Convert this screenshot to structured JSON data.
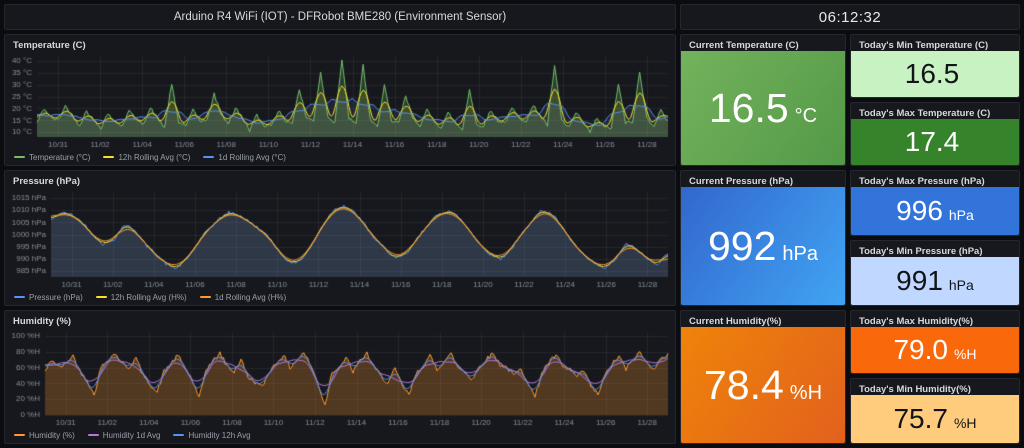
{
  "header": {
    "dashboard_title": "Arduino R4 WiFi (IOT) - DFRobot BME280 (Environment Sensor)"
  },
  "clock": {
    "time": "06:12:32"
  },
  "chart_data": [
    {
      "id": "temperature",
      "type": "area",
      "title": "Temperature (C)",
      "span_days": 30,
      "points_per_day": 3,
      "upsample": 4,
      "noise": 0.8,
      "ylim": [
        8,
        42
      ],
      "y_tick_values": [
        10,
        15,
        20,
        25,
        30,
        35,
        40
      ],
      "y_tick_labels": [
        "10 °C",
        "15 °C",
        "20 °C",
        "25 °C",
        "30 °C",
        "35 °C",
        "40 °C"
      ],
      "x_tick_days": [
        1,
        3,
        5,
        7,
        9,
        11,
        13,
        15,
        17,
        19,
        21,
        23,
        25,
        27,
        29
      ],
      "x_tick_labels": [
        "10/31",
        "11/02",
        "11/04",
        "11/06",
        "11/08",
        "11/10",
        "11/12",
        "11/14",
        "11/16",
        "11/18",
        "11/20",
        "11/22",
        "11/24",
        "11/26",
        "11/28"
      ],
      "values": [
        14,
        20,
        16,
        15,
        21,
        17,
        13,
        19,
        15,
        12,
        18,
        14,
        13,
        19,
        15,
        14,
        20,
        16,
        12,
        30,
        14,
        13,
        19,
        15,
        15,
        26,
        17,
        14,
        20,
        16,
        11,
        17,
        13,
        13,
        19,
        15,
        14,
        28,
        16,
        15,
        35,
        17,
        14,
        40,
        16,
        13,
        38,
        15,
        12,
        30,
        14,
        14,
        25,
        16,
        13,
        19,
        15,
        12,
        18,
        14,
        11,
        28,
        13,
        13,
        19,
        15,
        14,
        20,
        16,
        15,
        21,
        17,
        13,
        38,
        15,
        12,
        18,
        14,
        10,
        16,
        12,
        12,
        30,
        14,
        14,
        35,
        16,
        13,
        19,
        15
      ],
      "series": [
        {
          "name": "Temperature (°C)",
          "color": "#73BF69",
          "fill": "rgba(115,191,105,0.22)",
          "type": "raw",
          "width": 1
        },
        {
          "name": "12h Rolling Avg (°C)",
          "color": "#FADE2A",
          "fill": "rgba(250,222,42,0.10)",
          "type": "avg",
          "window_days": 0.5,
          "width": 1
        },
        {
          "name": "1d Rolling Avg (°C)",
          "color": "#5794F2",
          "fill": "rgba(87,148,242,0.10)",
          "type": "avg",
          "window_days": 1,
          "width": 1
        }
      ]
    },
    {
      "id": "pressure",
      "type": "area",
      "title": "Pressure (hPa)",
      "span_days": 30,
      "points_per_day": 2,
      "upsample": 6,
      "noise": 0.7,
      "ylim": [
        982.5,
        1017.5
      ],
      "y_tick_values": [
        985,
        990,
        995,
        1000,
        1005,
        1010,
        1015
      ],
      "y_tick_labels": [
        "985 hPa",
        "990 hPa",
        "995 hPa",
        "1000 hPa",
        "1005 hPa",
        "1010 hPa",
        "1015 hPa"
      ],
      "x_tick_days": [
        1,
        3,
        5,
        7,
        9,
        11,
        13,
        15,
        17,
        19,
        21,
        23,
        25,
        27,
        29
      ],
      "x_tick_labels": [
        "10/31",
        "11/02",
        "11/04",
        "11/06",
        "11/08",
        "11/10",
        "11/12",
        "11/14",
        "11/16",
        "11/18",
        "11/20",
        "11/22",
        "11/24",
        "11/26",
        "11/28"
      ],
      "values": [
        1006,
        1009,
        1008,
        1005,
        1000,
        996,
        998,
        1004,
        1002,
        996,
        992,
        988,
        986,
        990,
        996,
        1002,
        1006,
        1009,
        1008,
        1005,
        1002,
        998,
        992,
        988,
        990,
        996,
        1004,
        1010,
        1012,
        1009,
        1004,
        998,
        994,
        990,
        992,
        998,
        1004,
        1008,
        1010,
        1007,
        1002,
        996,
        992,
        990,
        994,
        1000,
        1006,
        1010,
        1008,
        1002,
        996,
        991,
        988,
        986,
        990,
        996,
        994,
        990,
        988,
        992
      ],
      "series": [
        {
          "name": "Pressure (hPa)",
          "color": "#5794F2",
          "fill": "rgba(120,150,200,0.25)",
          "type": "raw",
          "width": 1
        },
        {
          "name": "12h Rolling Avg (H%)",
          "color": "#FADE2A",
          "fill": "",
          "type": "avg",
          "window_days": 0.5,
          "width": 1
        },
        {
          "name": "1d Rolling Avg (H%)",
          "color": "#FF9830",
          "fill": "",
          "type": "avg",
          "window_days": 1,
          "width": 1
        }
      ]
    },
    {
      "id": "humidity",
      "type": "area",
      "title": "Humidity (%)",
      "span_days": 30,
      "points_per_day": 3,
      "upsample": 4,
      "noise": 3,
      "ylim": [
        0,
        105
      ],
      "y_tick_values": [
        0,
        20,
        40,
        60,
        80,
        100
      ],
      "y_tick_labels": [
        "0 %H",
        "20 %H",
        "40 %H",
        "60 %H",
        "80 %H",
        "100 %H"
      ],
      "x_tick_days": [
        1,
        3,
        5,
        7,
        9,
        11,
        13,
        15,
        17,
        19,
        21,
        23,
        25,
        27,
        29
      ],
      "x_tick_labels": [
        "10/31",
        "11/02",
        "11/04",
        "11/06",
        "11/08",
        "11/10",
        "11/12",
        "11/14",
        "11/16",
        "11/18",
        "11/20",
        "11/22",
        "11/24",
        "11/26",
        "11/28"
      ],
      "values": [
        55,
        70,
        60,
        65,
        75,
        55,
        45,
        25,
        60,
        70,
        78,
        65,
        60,
        72,
        50,
        40,
        28,
        55,
        65,
        75,
        60,
        45,
        20,
        58,
        68,
        78,
        62,
        55,
        70,
        48,
        42,
        35,
        55,
        65,
        76,
        60,
        70,
        79,
        62,
        40,
        12,
        55,
        60,
        72,
        55,
        68,
        78,
        60,
        50,
        40,
        58,
        38,
        25,
        52,
        62,
        74,
        58,
        68,
        77,
        60,
        55,
        45,
        60,
        70,
        78,
        64,
        60,
        50,
        58,
        42,
        22,
        55,
        66,
        76,
        60,
        58,
        48,
        56,
        36,
        26,
        50,
        64,
        74,
        58,
        70,
        79,
        65,
        60,
        70,
        78
      ],
      "series": [
        {
          "name": "Humidity (%)",
          "color": "#FF9830",
          "fill": "rgba(255,152,48,0.25)",
          "type": "raw",
          "width": 1
        },
        {
          "name": "Humidity 1d Avg",
          "color": "#B877D9",
          "fill": "",
          "type": "avg",
          "window_days": 1,
          "width": 1
        },
        {
          "name": "Humidity 12h Avg",
          "color": "#5794F2",
          "fill": "",
          "type": "avg",
          "window_days": 0.5,
          "width": 1
        }
      ]
    }
  ],
  "stats": {
    "current_temperature": {
      "title": "Current Temperature (C)",
      "value": "16.5",
      "unit": "°C",
      "bg": "#74b25c",
      "bg2": "#539947",
      "fg": "#ffffff"
    },
    "min_temperature": {
      "title": "Today's Min Temperature (C)",
      "value": "16.5",
      "unit": "",
      "bg": "#C8F2C2",
      "bg2": "",
      "fg": "#111418"
    },
    "max_temperature": {
      "title": "Today's Max Temperature (C)",
      "value": "17.4",
      "unit": "",
      "bg": "#35842C",
      "bg2": "",
      "fg": "#ffffff"
    },
    "current_pressure": {
      "title": "Current Pressure (hPa)",
      "value": "992",
      "unit": "hPa",
      "bg": "#3267cd",
      "bg2": "#41a4f3",
      "fg": "#ffffff"
    },
    "max_pressure": {
      "title": "Today's Max Pressure (hPa)",
      "value": "996",
      "unit": "hPa",
      "bg": "#3274D9",
      "bg2": "",
      "fg": "#ffffff"
    },
    "min_pressure": {
      "title": "Today's Min Pressure (hPa)",
      "value": "991",
      "unit": "hPa",
      "bg": "#C0D8FF",
      "bg2": "",
      "fg": "#111418"
    },
    "current_humidity": {
      "title": "Current Humidity(%)",
      "value": "78.4",
      "unit": "%H",
      "bg": "#ef8309",
      "bg2": "#e2611d",
      "fg": "#ffffff"
    },
    "max_humidity": {
      "title": "Today's Max Humidity(%)",
      "value": "79.0",
      "unit": "%H",
      "bg": "#F9680B",
      "bg2": "",
      "fg": "#ffffff"
    },
    "min_humidity": {
      "title": "Today's Min Humidity(%)",
      "value": "75.7",
      "unit": "%H",
      "bg": "#FFCB7D",
      "bg2": "",
      "fg": "#111418"
    }
  }
}
